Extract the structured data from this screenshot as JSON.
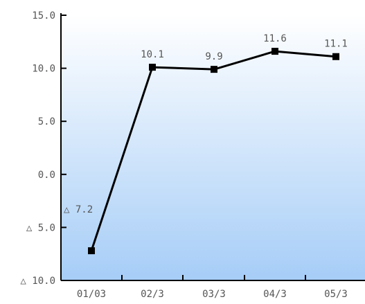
{
  "chart_data": {
    "type": "line",
    "title": "",
    "xlabel": "",
    "ylabel": "",
    "categories": [
      "01/03",
      "02/3",
      "03/3",
      "04/3",
      "05/3"
    ],
    "series": [
      {
        "values": [
          -7.2,
          10.1,
          9.9,
          11.6,
          11.1
        ],
        "data_labels": [
          "△ 7.2",
          "10.1",
          "9.9",
          "11.6",
          "11.1"
        ],
        "color": "#000000",
        "marker": "square"
      }
    ],
    "ylim": [
      -10,
      15
    ],
    "yticks": [
      15,
      10,
      5,
      0,
      -5,
      -10
    ],
    "ytick_labels": [
      "15.0",
      "10.0",
      "5.0",
      "0.0",
      "△ 5.0",
      "△ 10.0"
    ],
    "grid": false,
    "legend": "none",
    "background_gradient": [
      "#ffffff",
      "#a6cdf7"
    ],
    "axis_color": "#000000",
    "label_color": "#555555"
  }
}
